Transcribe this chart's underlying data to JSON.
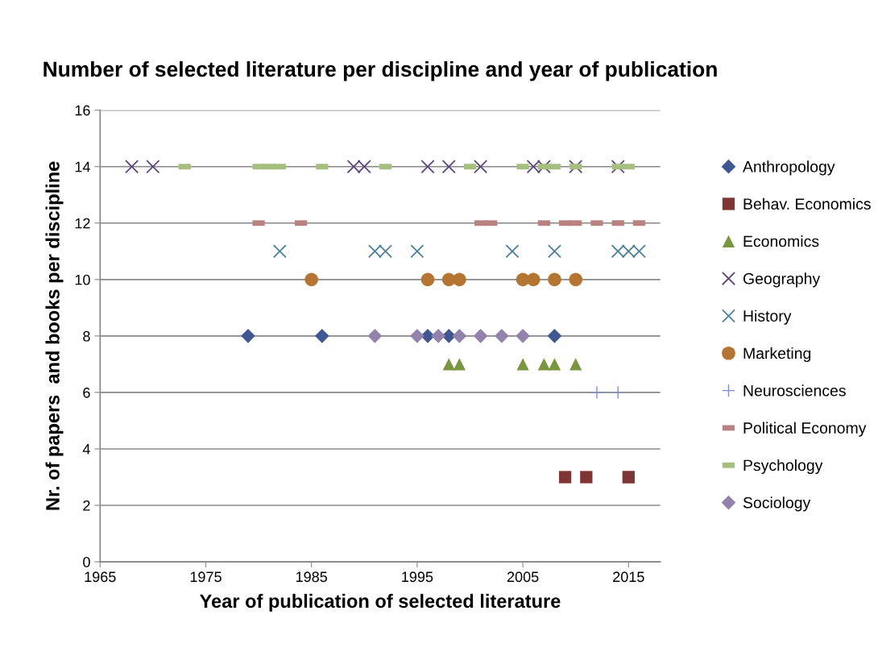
{
  "chart_data": {
    "type": "scatter",
    "title": "Number of selected literature per discipline and year of publication",
    "xlabel": "Year of publication of selected literature",
    "ylabel": "Nr. of papers  and books per discipline",
    "xlim": [
      1965,
      2018
    ],
    "xticks": [
      1965,
      1975,
      1985,
      1995,
      2005,
      2015
    ],
    "ylim": [
      0,
      16
    ],
    "yticks": [
      0,
      2,
      4,
      6,
      8,
      10,
      12,
      14,
      16
    ],
    "grid": "y",
    "legend": "right",
    "series": [
      {
        "name": "Anthropology",
        "color": "#3f5792",
        "marker": "diamond",
        "x": [
          1979,
          1986,
          1996,
          1998,
          2008
        ],
        "values": [
          8,
          8,
          8,
          8,
          8
        ]
      },
      {
        "name": "Behav. Economics",
        "color": "#7f3534",
        "marker": "square",
        "x": [
          2009,
          2011,
          2015
        ],
        "values": [
          3,
          3,
          3
        ]
      },
      {
        "name": "Economics",
        "color": "#7b9640",
        "marker": "triangle",
        "x": [
          1998,
          1999,
          2005,
          2007,
          2008,
          2010
        ],
        "values": [
          7,
          7,
          7,
          7,
          7,
          7
        ]
      },
      {
        "name": "Geography",
        "color": "#5e4581",
        "marker": "cross",
        "x": [
          1968,
          1970,
          1989,
          1990,
          1996,
          1998,
          2001,
          2006,
          2007,
          2010,
          2014
        ],
        "values": [
          14,
          14,
          14,
          14,
          14,
          14,
          14,
          14,
          14,
          14,
          14
        ]
      },
      {
        "name": "History",
        "color": "#4b8099",
        "marker": "cross",
        "x": [
          1982,
          1991,
          1992,
          1995,
          2004,
          2008,
          2014,
          2015,
          2016
        ],
        "values": [
          11,
          11,
          11,
          11,
          11,
          11,
          11,
          11,
          11
        ]
      },
      {
        "name": "Marketing",
        "color": "#b47532",
        "marker": "circle",
        "x": [
          1985,
          1996,
          1998,
          1999,
          2005,
          2006,
          2008,
          2010
        ],
        "values": [
          10,
          10,
          10,
          10,
          10,
          10,
          10,
          10
        ]
      },
      {
        "name": "Neurosciences",
        "color": "#7f8fc5",
        "marker": "plus",
        "x": [
          2012,
          2014
        ],
        "values": [
          6,
          6
        ]
      },
      {
        "name": "Political Economy",
        "color": "#b98281",
        "marker": "square",
        "x": [
          1980,
          1984,
          2001,
          2002,
          2007,
          2009,
          2010,
          2012,
          2014,
          2016
        ],
        "values": [
          12,
          12,
          12,
          12,
          12,
          12,
          12,
          12,
          12,
          12
        ]
      },
      {
        "name": "Psychology",
        "color": "#a6bf7f",
        "marker": "square",
        "x": [
          1973,
          1980,
          1981,
          1982,
          1986,
          1992,
          2000,
          2005,
          2007,
          2008,
          2010,
          2014,
          2015
        ],
        "values": [
          14,
          14,
          14,
          14,
          14,
          14,
          14,
          14,
          14,
          14,
          14,
          14,
          14
        ]
      },
      {
        "name": "Sociology",
        "color": "#9282ac",
        "marker": "diamond",
        "x": [
          1991,
          1995,
          1997,
          1999,
          2001,
          2003,
          2005
        ],
        "values": [
          8,
          8,
          8,
          8,
          8,
          8,
          8
        ]
      }
    ]
  }
}
